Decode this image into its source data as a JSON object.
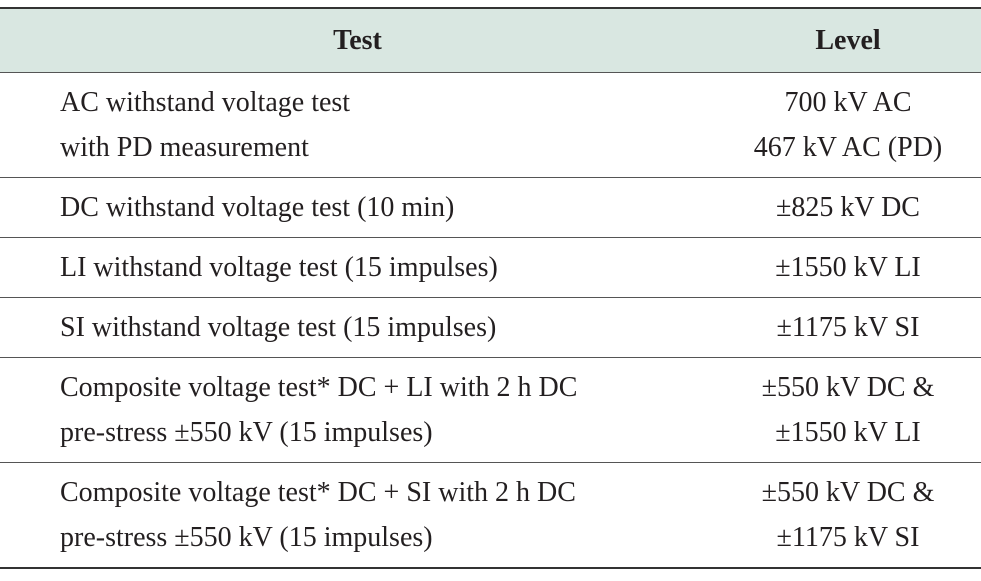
{
  "table": {
    "header": [
      "Test",
      "Level"
    ],
    "rows": [
      [
        [
          "AC withstand voltage test",
          "with PD measurement"
        ],
        [
          "700 kV AC",
          "467 kV AC (PD)"
        ]
      ],
      [
        [
          "DC withstand voltage test (10 min)"
        ],
        [
          "±825 kV DC"
        ]
      ],
      [
        [
          "LI withstand voltage test (15 impulses)"
        ],
        [
          "±1550 kV LI"
        ]
      ],
      [
        [
          "SI withstand voltage test (15 impulses)"
        ],
        [
          "±1175 kV SI"
        ]
      ],
      [
        [
          "Composite voltage test* DC + LI with 2 h DC",
          "pre-stress ±550 kV (15 impulses)"
        ],
        [
          "±550 kV DC &",
          "±1550 kV LI"
        ]
      ],
      [
        [
          "Composite voltage test* DC + SI with 2 h DC",
          "pre-stress ±550 kV (15 impulses)"
        ],
        [
          "±550 kV DC &",
          "±1175 kV SI"
        ]
      ]
    ]
  }
}
